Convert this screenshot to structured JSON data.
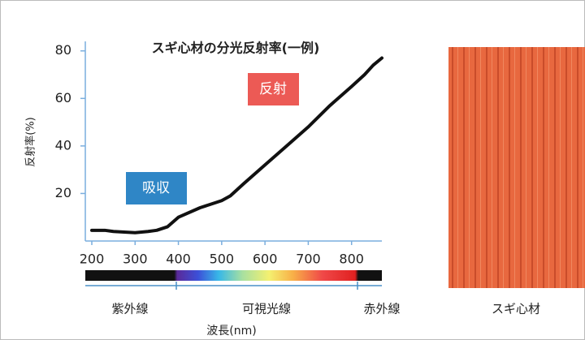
{
  "chart_data": {
    "type": "line",
    "title": "スギ心材の分光反射率(一例)",
    "y_label": "反射率(%)",
    "x_label": "波長(nm)",
    "annotations": {
      "reflection": "反射",
      "absorption": "吸収",
      "ultraviolet": "紫外線",
      "visible": "可視光線",
      "infrared": "赤外線",
      "sample": "スギ心材"
    },
    "x": [
      200,
      230,
      250,
      300,
      330,
      350,
      375,
      400,
      450,
      500,
      520,
      550,
      600,
      650,
      700,
      750,
      800,
      830,
      850,
      870
    ],
    "values": [
      4.5,
      4.5,
      4,
      3.5,
      4,
      4.5,
      6,
      10,
      14,
      17,
      19,
      24,
      32,
      40,
      48,
      57,
      65,
      70,
      74,
      77
    ],
    "color": "#111111",
    "xlim": [
      185,
      870
    ],
    "ylim": [
      0,
      84
    ],
    "xticks": [
      200,
      300,
      400,
      500,
      600,
      700,
      800
    ],
    "yticks": [
      20,
      40,
      60,
      80
    ],
    "grid": false
  }
}
